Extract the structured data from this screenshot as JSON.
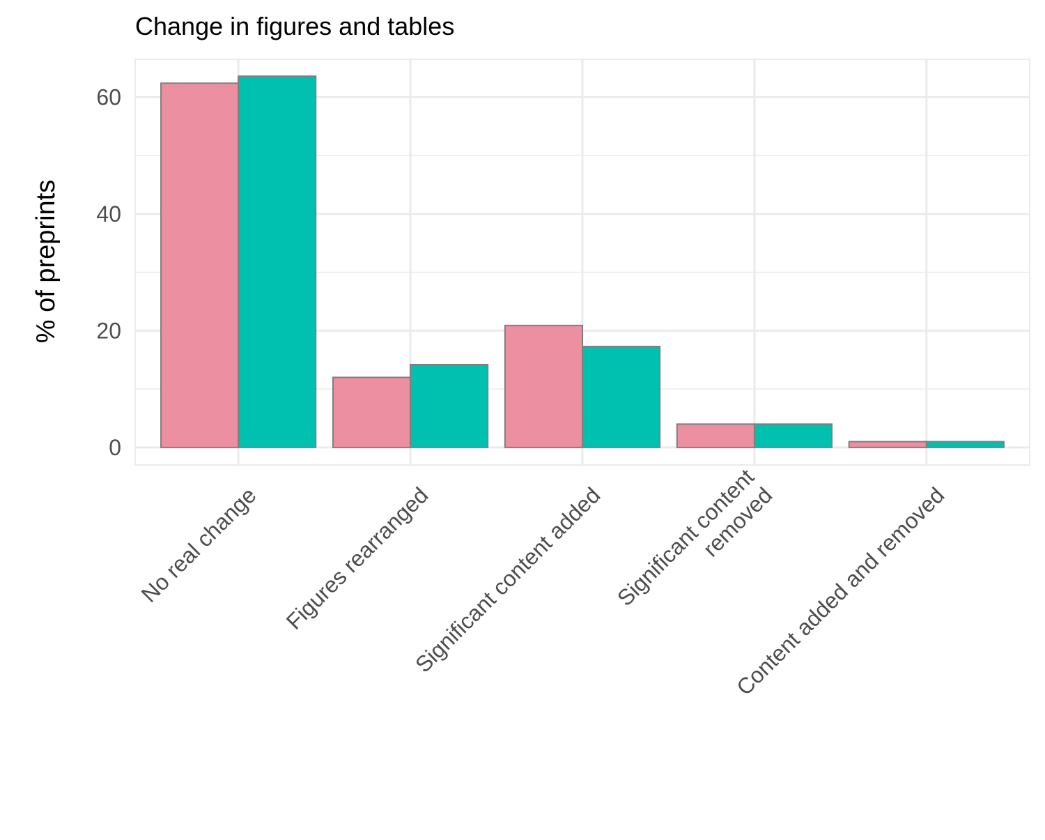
{
  "chart_data": {
    "type": "bar",
    "title": "Change in figures and tables",
    "xlabel": "",
    "ylabel": "% of preprints",
    "categories": [
      [
        "No real change"
      ],
      [
        "Figures rearranged"
      ],
      [
        "Significant content added"
      ],
      [
        "Significant content",
        "removed"
      ],
      [
        "Content added and removed"
      ]
    ],
    "series": [
      {
        "color": "#ec8fa0",
        "values": [
          62.4,
          12.0,
          20.9,
          4.0,
          1.0
        ]
      },
      {
        "color": "#00c0b0",
        "values": [
          63.6,
          14.2,
          17.3,
          4.0,
          1.0
        ]
      }
    ],
    "ylim": [
      -3,
      66.5
    ],
    "yticks": [
      0,
      20,
      40,
      60
    ],
    "yticks_minor": [
      10,
      30,
      50
    ],
    "grid": true,
    "legend": "none",
    "bar_outline_color": "#7f7f7f",
    "grid_color": "#ebebeb"
  }
}
